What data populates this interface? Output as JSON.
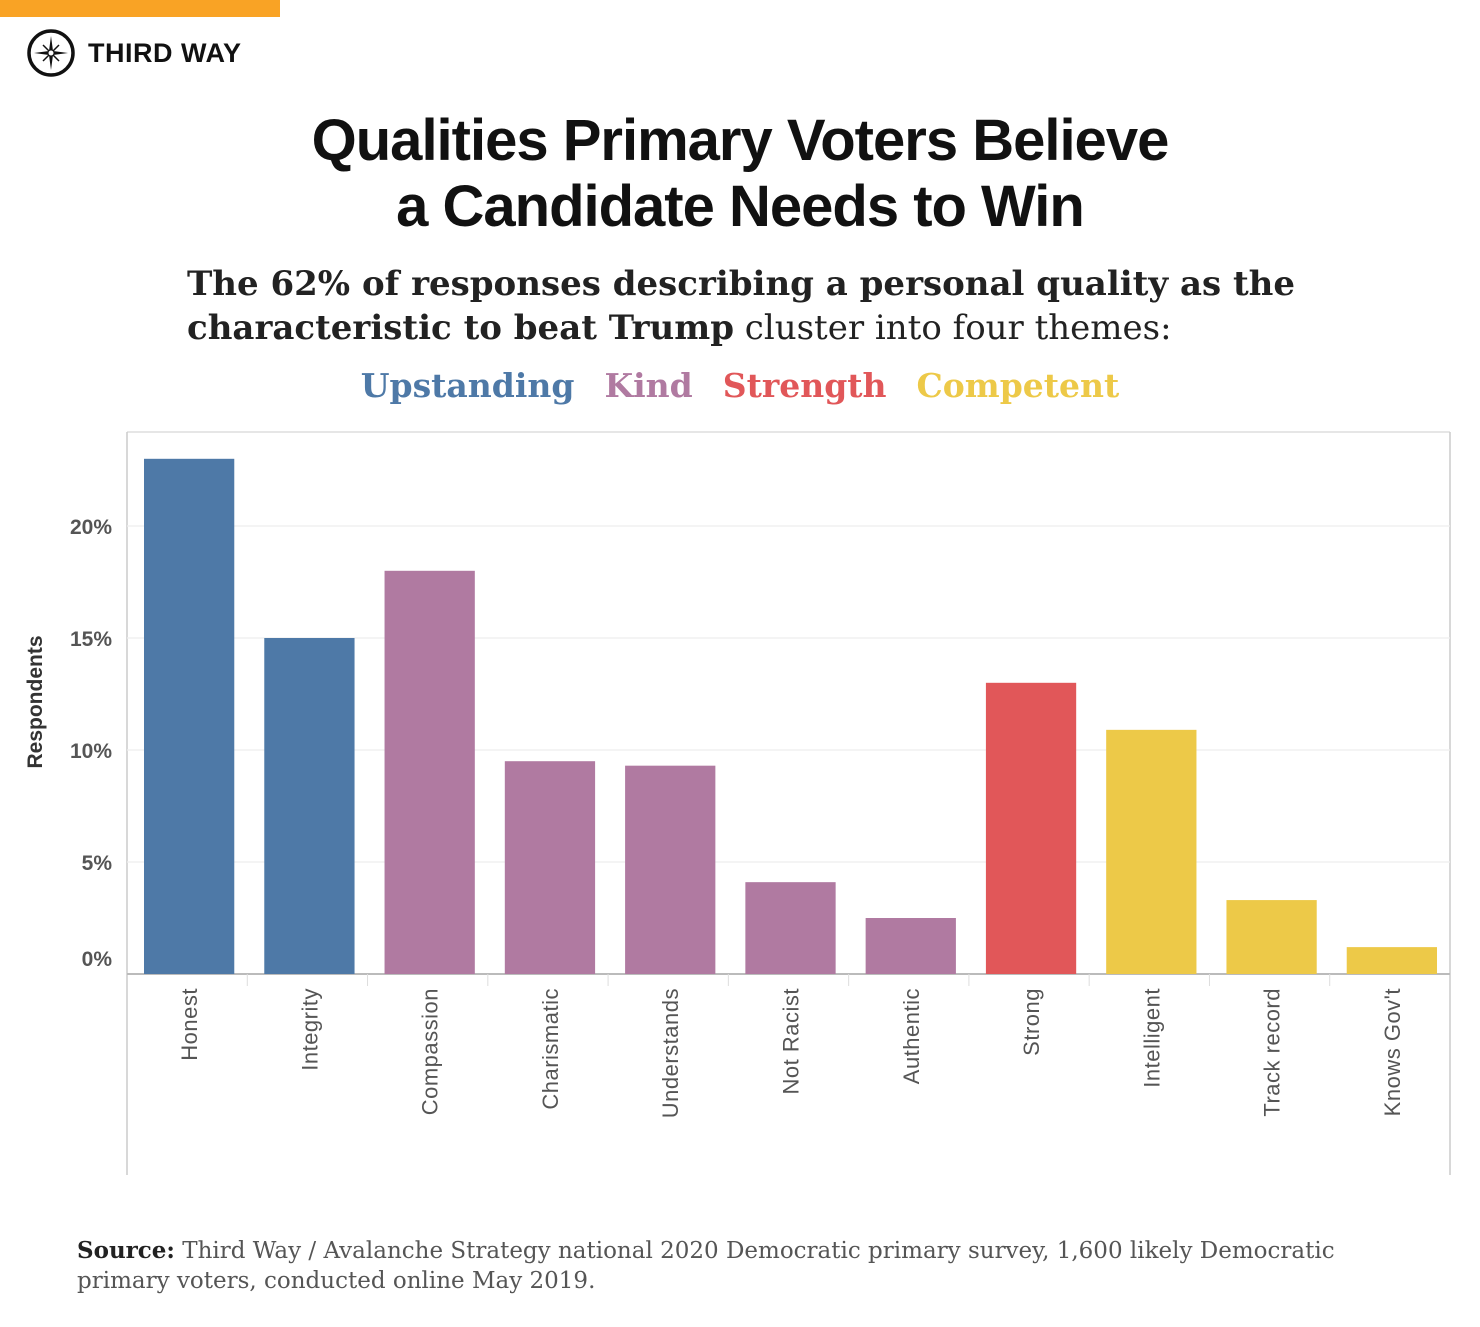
{
  "brand": {
    "name": "THIRD WAY",
    "accent": "#f9a325"
  },
  "title_line1": "Qualities Primary Voters Believe",
  "title_line2": "a Candidate Needs to Win",
  "subtitle": {
    "bold1": "The 62% of responses describing a personal quality as the characteristic to beat Trump",
    "rest": " cluster into four themes:"
  },
  "source": {
    "label": "Source:",
    "text": " Third Way / Avalanche Strategy national 2020 Democratic primary survey, 1,600 likely Democratic primary voters, conducted online May 2019."
  },
  "chart_data": {
    "type": "bar",
    "title": "Qualities Primary Voters Believe a Candidate Needs to Win",
    "xlabel": "",
    "ylabel": "Respondents",
    "ylim": [
      0,
      24
    ],
    "yticks": [
      0,
      5,
      10,
      15,
      20
    ],
    "ytick_labels": [
      "0%",
      "5%",
      "10%",
      "15%",
      "20%"
    ],
    "grid": true,
    "legend": [
      {
        "name": "Upstanding",
        "color": "#4e79a7"
      },
      {
        "name": "Kind",
        "color": "#b07aa1"
      },
      {
        "name": "Strength",
        "color": "#e15759"
      },
      {
        "name": "Competent",
        "color": "#edc948"
      }
    ],
    "legend_placement": "top-center",
    "categories": [
      "Honest",
      "Integrity",
      "Compassion",
      "Charismatic",
      "Understands",
      "Not Racist",
      "Authentic",
      "Strong",
      "Intelligent",
      "Track record",
      "Knows Gov't"
    ],
    "values": [
      23.0,
      15.0,
      18.0,
      9.5,
      9.3,
      4.1,
      2.5,
      13.0,
      10.9,
      3.3,
      1.2
    ],
    "groups": [
      "Upstanding",
      "Upstanding",
      "Kind",
      "Kind",
      "Kind",
      "Kind",
      "Kind",
      "Strength",
      "Competent",
      "Competent",
      "Competent"
    ]
  }
}
